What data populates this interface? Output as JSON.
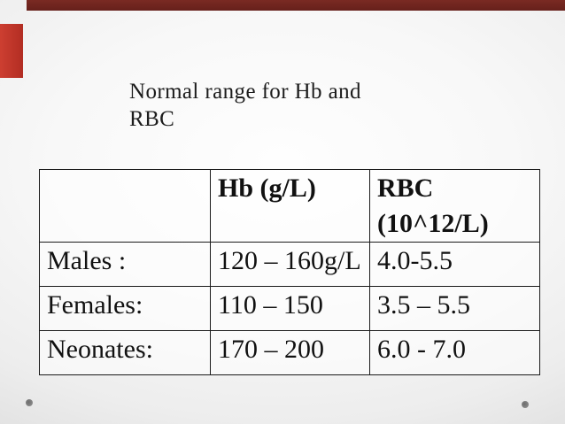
{
  "slide": {
    "title": {
      "line1": "Normal range for Hb and",
      "line2": "RBC"
    },
    "table": {
      "header": {
        "col0": "",
        "hb": "Hb (g/L)",
        "rbc_line1": "RBC",
        "rbc_line2": "(10^12/L)"
      },
      "rows": [
        {
          "label": "Males :",
          "hb": "120 – 160g/L",
          "rbc": "4.0-5.5"
        },
        {
          "label": "Females:",
          "hb": "110 – 150",
          "rbc": "3.5 – 5.5"
        },
        {
          "label": "Neonates:",
          "hb": "170 – 200",
          "rbc": "6.0 - 7.0"
        }
      ]
    },
    "colors": {
      "top_bar": "#6e231d",
      "left_tab": "#c23527",
      "table_border": "#1a1a1a",
      "text": "#1c1c1c",
      "dot": "#7d7d7d",
      "background_center": "#fefefe",
      "background_edge": "#d2d2d2"
    }
  }
}
